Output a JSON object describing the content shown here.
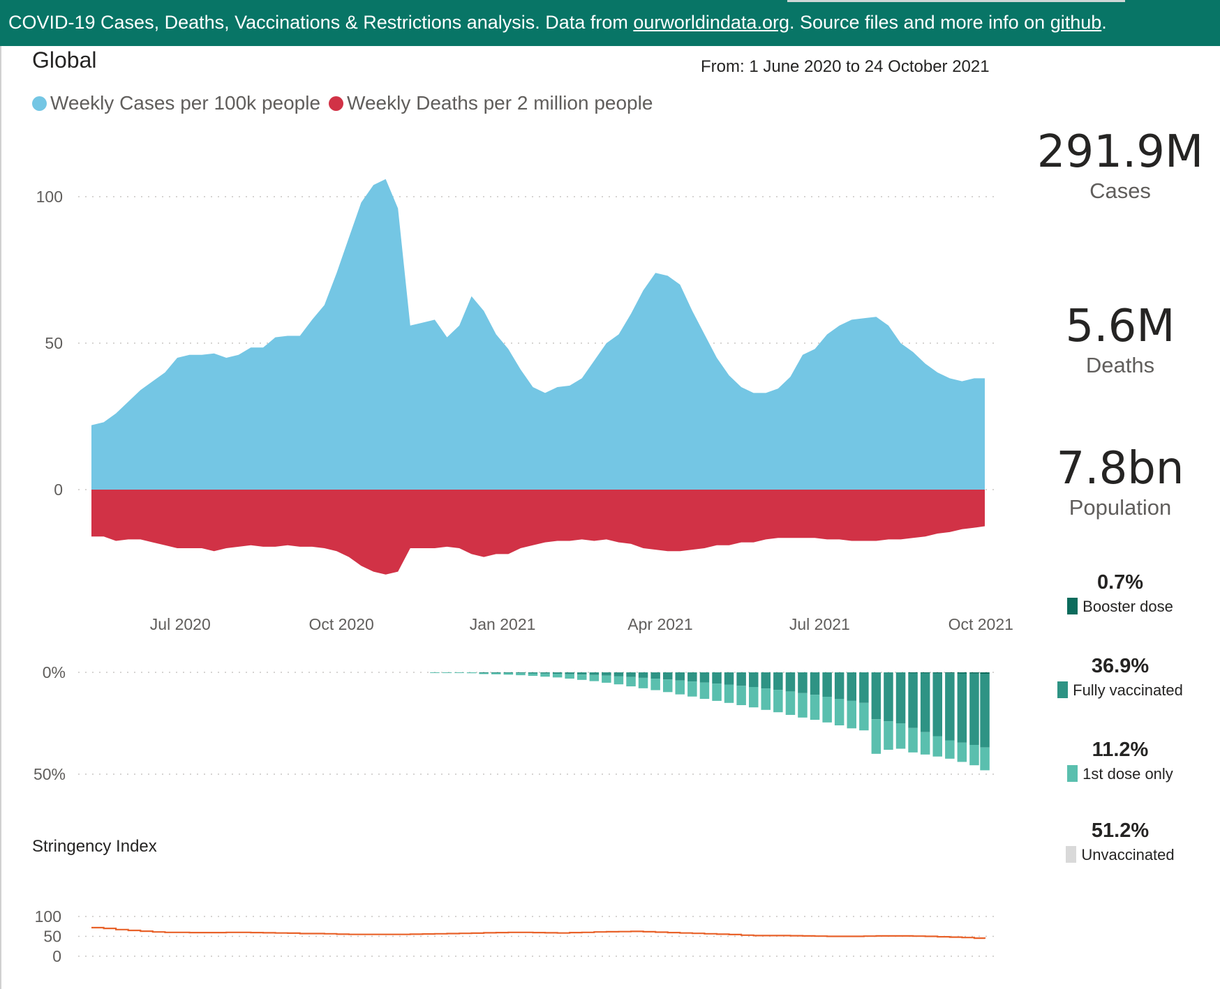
{
  "banner": {
    "text_before": "COVID-19 Cases, Deaths, Vaccinations & Restrictions  analysis. Data from ",
    "link1": "ourworldindata.org",
    "text_middle": ". Source files and more info on ",
    "link2": "github",
    "text_after": "."
  },
  "region": "Global",
  "date_range": "From: 1 June 2020 to 24 October 2021",
  "colors": {
    "banner": "#087566",
    "cases": "#74c6e4",
    "deaths": "#d13246",
    "booster": "#0b6b5c",
    "fully": "#2e9384",
    "first_dose": "#5abfae",
    "unvaccinated": "#d9d9d9",
    "stringency": "#e8622a"
  },
  "kpis": [
    {
      "value": "291.9M",
      "label": "Cases"
    },
    {
      "value": "5.6M",
      "label": "Deaths"
    },
    {
      "value": "7.8bn",
      "label": "Population"
    }
  ],
  "vaccination_status": [
    {
      "pct": "0.7%",
      "label": "Booster dose"
    },
    {
      "pct": "36.9%",
      "label": "Fully vaccinated"
    },
    {
      "pct": "11.2%",
      "label": "1st dose only"
    },
    {
      "pct": "51.2%",
      "label": "Unvaccinated"
    }
  ],
  "chart_data": [
    {
      "type": "area",
      "title": "",
      "xlabel": "",
      "ylabel": "",
      "x_tick_labels": [
        "Jul 2020",
        "Oct 2020",
        "Jan 2021",
        "Apr 2021",
        "Jul 2021",
        "Oct 2021"
      ],
      "y_tick_labels": [
        "100",
        "50",
        "0"
      ],
      "ylim": [
        -35,
        110
      ],
      "grid": true,
      "legend_position": "top-left",
      "x": [
        "2020-06-01",
        "2020-06-08",
        "2020-06-15",
        "2020-06-22",
        "2020-06-29",
        "2020-07-06",
        "2020-07-13",
        "2020-07-20",
        "2020-07-27",
        "2020-08-03",
        "2020-08-10",
        "2020-08-17",
        "2020-08-24",
        "2020-08-31",
        "2020-09-07",
        "2020-09-14",
        "2020-09-21",
        "2020-09-28",
        "2020-10-05",
        "2020-10-12",
        "2020-10-19",
        "2020-10-26",
        "2020-11-02",
        "2020-11-09",
        "2020-11-16",
        "2020-11-23",
        "2020-11-30",
        "2020-12-07",
        "2020-12-14",
        "2020-12-21",
        "2020-12-28",
        "2021-01-04",
        "2021-01-11",
        "2021-01-18",
        "2021-01-25",
        "2021-02-01",
        "2021-02-08",
        "2021-02-15",
        "2021-02-22",
        "2021-03-01",
        "2021-03-08",
        "2021-03-15",
        "2021-03-22",
        "2021-03-29",
        "2021-04-05",
        "2021-04-12",
        "2021-04-19",
        "2021-04-26",
        "2021-05-03",
        "2021-05-10",
        "2021-05-17",
        "2021-05-24",
        "2021-05-31",
        "2021-06-07",
        "2021-06-14",
        "2021-06-21",
        "2021-06-28",
        "2021-07-05",
        "2021-07-12",
        "2021-07-19",
        "2021-07-26",
        "2021-08-02",
        "2021-08-09",
        "2021-08-16",
        "2021-08-23",
        "2021-08-30",
        "2021-09-06",
        "2021-09-13",
        "2021-09-20",
        "2021-09-27",
        "2021-10-04",
        "2021-10-11",
        "2021-10-18",
        "2021-10-24"
      ],
      "series": [
        {
          "name": "Weekly Cases per 100k people",
          "values": [
            22,
            23,
            26,
            30,
            34,
            37,
            40,
            45,
            46,
            46,
            46.5,
            45,
            46,
            48.5,
            48.5,
            52,
            52.5,
            52.5,
            58,
            63,
            74,
            86,
            98,
            104,
            106,
            96,
            56,
            57,
            58,
            52,
            56,
            66,
            61,
            53,
            48,
            41,
            35,
            33,
            35,
            35.5,
            38,
            44,
            50,
            53,
            60,
            68,
            74,
            73,
            70,
            61,
            53,
            45,
            39,
            35,
            33,
            33,
            34.5,
            38.5,
            46,
            48,
            53,
            56,
            58,
            58.5,
            59,
            56,
            50,
            47,
            43,
            40,
            38,
            37,
            38,
            38
          ]
        },
        {
          "name": "Weekly Deaths per 2 million people",
          "values": [
            16,
            16,
            17.5,
            17,
            17,
            18,
            19,
            20,
            20,
            20,
            21,
            20,
            19.5,
            19,
            19.5,
            19.5,
            19,
            19.5,
            19.5,
            20,
            21,
            23,
            26,
            28,
            29,
            28,
            20,
            20,
            20,
            19.5,
            20,
            22,
            23,
            22,
            22,
            20,
            19,
            18,
            17.5,
            17.5,
            17,
            17.5,
            17,
            18,
            18.5,
            20,
            20.5,
            21,
            21,
            20.5,
            20,
            19,
            19,
            18,
            18,
            17,
            16.5,
            16.5,
            16.5,
            16.5,
            17,
            17,
            17.5,
            17.5,
            17.5,
            17,
            17,
            16.5,
            16,
            15,
            14.5,
            13.5,
            13,
            12.5
          ]
        }
      ]
    },
    {
      "type": "bar",
      "title": "",
      "ylabel": "",
      "y_tick_labels": [
        "0%",
        "50%"
      ],
      "ylim": [
        0,
        50
      ],
      "grid": true,
      "x": [
        "2020-12-14",
        "2020-12-21",
        "2020-12-28",
        "2021-01-04",
        "2021-01-11",
        "2021-01-18",
        "2021-01-25",
        "2021-02-01",
        "2021-02-08",
        "2021-02-15",
        "2021-02-22",
        "2021-03-01",
        "2021-03-08",
        "2021-03-15",
        "2021-03-22",
        "2021-03-29",
        "2021-04-05",
        "2021-04-12",
        "2021-04-19",
        "2021-04-26",
        "2021-05-03",
        "2021-05-10",
        "2021-05-17",
        "2021-05-24",
        "2021-05-31",
        "2021-06-07",
        "2021-06-14",
        "2021-06-21",
        "2021-06-28",
        "2021-07-05",
        "2021-07-12",
        "2021-07-19",
        "2021-07-26",
        "2021-08-02",
        "2021-08-09",
        "2021-08-16",
        "2021-08-23",
        "2021-08-30",
        "2021-09-06",
        "2021-09-13",
        "2021-09-20",
        "2021-09-27",
        "2021-10-04",
        "2021-10-11",
        "2021-10-18",
        "2021-10-24"
      ],
      "series": [
        {
          "name": "Booster dose",
          "values": [
            0,
            0,
            0,
            0,
            0,
            0,
            0,
            0,
            0,
            0,
            0,
            0,
            0,
            0,
            0,
            0,
            0,
            0,
            0,
            0,
            0,
            0,
            0,
            0,
            0,
            0,
            0,
            0,
            0,
            0,
            0,
            0,
            0,
            0,
            0,
            0,
            0,
            0,
            0,
            0.1,
            0.2,
            0.3,
            0.4,
            0.5,
            0.6,
            0.7
          ]
        },
        {
          "name": "Fully vaccinated",
          "values": [
            0,
            0,
            0,
            0,
            0.1,
            0.2,
            0.3,
            0.4,
            0.5,
            0.6,
            0.7,
            0.9,
            1.1,
            1.3,
            1.6,
            1.9,
            2.3,
            2.7,
            3.1,
            3.5,
            4,
            4.5,
            5,
            5.5,
            6,
            6.6,
            7.2,
            7.9,
            8.6,
            9.4,
            10.2,
            11,
            12,
            13,
            14,
            15,
            23,
            24,
            25,
            27,
            29,
            31,
            33,
            34,
            35,
            36.2
          ]
        },
        {
          "name": "1st dose only",
          "values": [
            0.1,
            0.2,
            0.3,
            0.4,
            0.5,
            0.6,
            0.8,
            1,
            1.2,
            1.5,
            1.8,
            2.2,
            2.6,
            3,
            3.5,
            4,
            4.6,
            5.1,
            5.6,
            6.2,
            6.8,
            7.4,
            8,
            8.5,
            9,
            9.5,
            10,
            10.5,
            11,
            11.5,
            12,
            12.3,
            12.6,
            13,
            13.5,
            13.5,
            17,
            14,
            12.5,
            12,
            11,
            10,
            9,
            9.5,
            10,
            11.2
          ]
        }
      ]
    },
    {
      "type": "line",
      "title": "Stringency Index",
      "ylabel": "",
      "y_tick_labels": [
        "100",
        "50",
        "0"
      ],
      "ylim": [
        0,
        100
      ],
      "grid": true,
      "x": [
        "2020-06-01",
        "2020-06-08",
        "2020-06-15",
        "2020-06-22",
        "2020-06-29",
        "2020-07-06",
        "2020-07-13",
        "2020-07-20",
        "2020-07-27",
        "2020-08-03",
        "2020-08-10",
        "2020-08-17",
        "2020-08-24",
        "2020-08-31",
        "2020-09-07",
        "2020-09-14",
        "2020-09-21",
        "2020-09-28",
        "2020-10-05",
        "2020-10-12",
        "2020-10-19",
        "2020-10-26",
        "2020-11-02",
        "2020-11-09",
        "2020-11-16",
        "2020-11-23",
        "2020-11-30",
        "2020-12-07",
        "2020-12-14",
        "2020-12-21",
        "2020-12-28",
        "2021-01-04",
        "2021-01-11",
        "2021-01-18",
        "2021-01-25",
        "2021-02-01",
        "2021-02-08",
        "2021-02-15",
        "2021-02-22",
        "2021-03-01",
        "2021-03-08",
        "2021-03-15",
        "2021-03-22",
        "2021-03-29",
        "2021-04-05",
        "2021-04-12",
        "2021-04-19",
        "2021-04-26",
        "2021-05-03",
        "2021-05-10",
        "2021-05-17",
        "2021-05-24",
        "2021-05-31",
        "2021-06-07",
        "2021-06-14",
        "2021-06-21",
        "2021-06-28",
        "2021-07-05",
        "2021-07-12",
        "2021-07-19",
        "2021-07-26",
        "2021-08-02",
        "2021-08-09",
        "2021-08-16",
        "2021-08-23",
        "2021-08-30",
        "2021-09-06",
        "2021-09-13",
        "2021-09-20",
        "2021-09-27",
        "2021-10-04",
        "2021-10-11",
        "2021-10-18",
        "2021-10-24"
      ],
      "series": [
        {
          "name": "Stringency Index",
          "values": [
            72,
            70,
            67,
            65,
            63,
            61,
            60,
            60,
            59.5,
            59.5,
            59.5,
            60,
            60,
            59.5,
            59,
            58.5,
            58,
            57,
            57,
            56.5,
            55.5,
            55,
            55,
            55,
            55,
            55,
            55.5,
            56,
            56.5,
            57,
            57.5,
            58,
            59,
            59.5,
            60,
            60,
            59.5,
            59,
            58.5,
            59.5,
            60,
            61,
            61.5,
            62,
            62.5,
            61.5,
            60.5,
            59.5,
            58.5,
            57.5,
            56.5,
            55.5,
            54.5,
            53,
            52,
            52,
            52,
            51.5,
            51,
            50.5,
            50,
            50,
            50,
            50.5,
            51,
            51,
            51,
            50.5,
            50,
            49,
            48,
            47,
            45.5,
            44
          ]
        }
      ]
    }
  ]
}
